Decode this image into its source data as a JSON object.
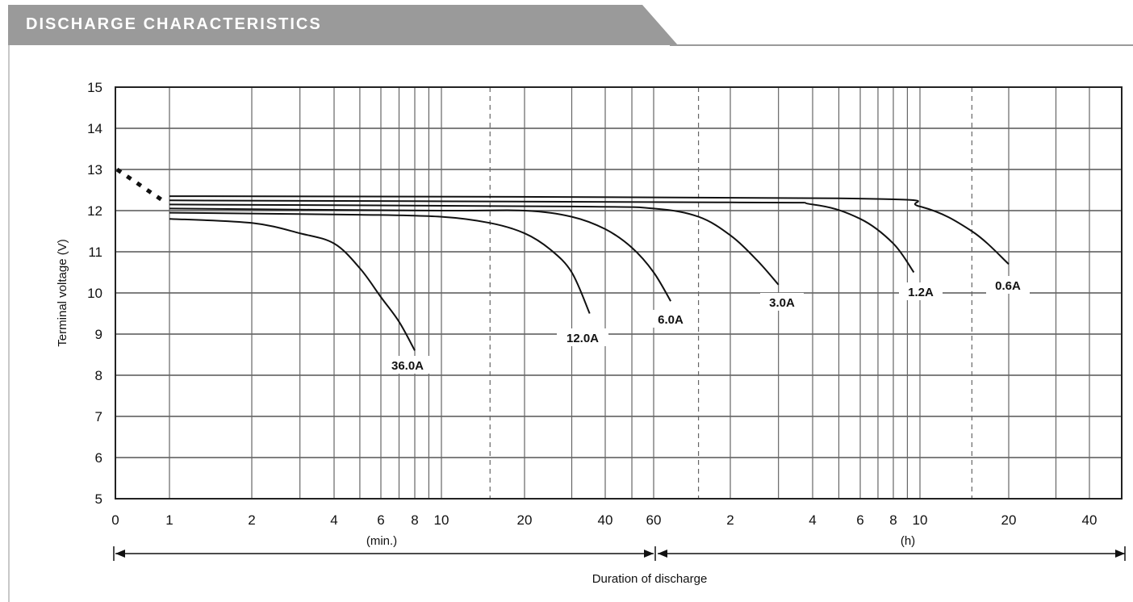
{
  "header": {
    "title": "DISCHARGE CHARACTERISTICS"
  },
  "chart_data": {
    "type": "line",
    "title": "DISCHARGE CHARACTERISTICS",
    "ylabel": "Terminal voltage (V)",
    "xlabel": "Duration of discharge",
    "ylim": [
      5,
      15
    ],
    "yticks": [
      "15",
      "14",
      "13",
      "12",
      "11",
      "10",
      "9",
      "8",
      "7",
      "6",
      "5"
    ],
    "x_scale": "log (minutes then hours)",
    "xticks_min": [
      "0",
      "1",
      "2",
      "4",
      "6",
      "8",
      "10",
      "20",
      "40",
      "60"
    ],
    "xticks_h": [
      "2",
      "4",
      "6",
      "8",
      "10",
      "20",
      "40"
    ],
    "x_unit_min": "(min.)",
    "x_unit_h": "(h)",
    "grid": true,
    "initial_segment": {
      "style": "dashed",
      "points": [
        [
          0,
          13.0
        ],
        [
          1,
          12.2
        ]
      ]
    },
    "series": [
      {
        "name": "36.0A",
        "x_min": [
          1,
          2,
          3,
          4,
          5,
          6,
          7,
          8
        ],
        "y": [
          11.8,
          11.7,
          11.45,
          11.2,
          10.6,
          9.9,
          9.3,
          8.6
        ]
      },
      {
        "name": "12.0A",
        "x_min": [
          1,
          5,
          10,
          15,
          20,
          25,
          30,
          35
        ],
        "y": [
          11.95,
          11.9,
          11.85,
          11.7,
          11.45,
          11.05,
          10.5,
          9.5
        ]
      },
      {
        "name": "6.0A",
        "x_min": [
          1,
          10,
          20,
          30,
          40,
          50,
          60,
          70
        ],
        "y": [
          12.05,
          12.0,
          12.0,
          11.85,
          11.55,
          11.1,
          10.5,
          9.8
        ]
      },
      {
        "name": "3.0A",
        "x_min": [
          1,
          30,
          60,
          90,
          120,
          150,
          180
        ],
        "y": [
          12.15,
          12.1,
          12.05,
          11.85,
          11.4,
          10.8,
          10.2
        ]
      },
      {
        "name": "1.2A",
        "x_min": [
          1,
          120,
          240,
          360,
          480,
          570
        ],
        "y": [
          12.25,
          12.2,
          12.15,
          11.8,
          11.2,
          10.5
        ]
      },
      {
        "name": "0.6A",
        "x_min": [
          1,
          300,
          600,
          900,
          1200
        ],
        "y": [
          12.35,
          12.3,
          12.1,
          11.5,
          10.7
        ]
      }
    ],
    "duration_segments": [
      "(min.)",
      "(h)"
    ]
  }
}
